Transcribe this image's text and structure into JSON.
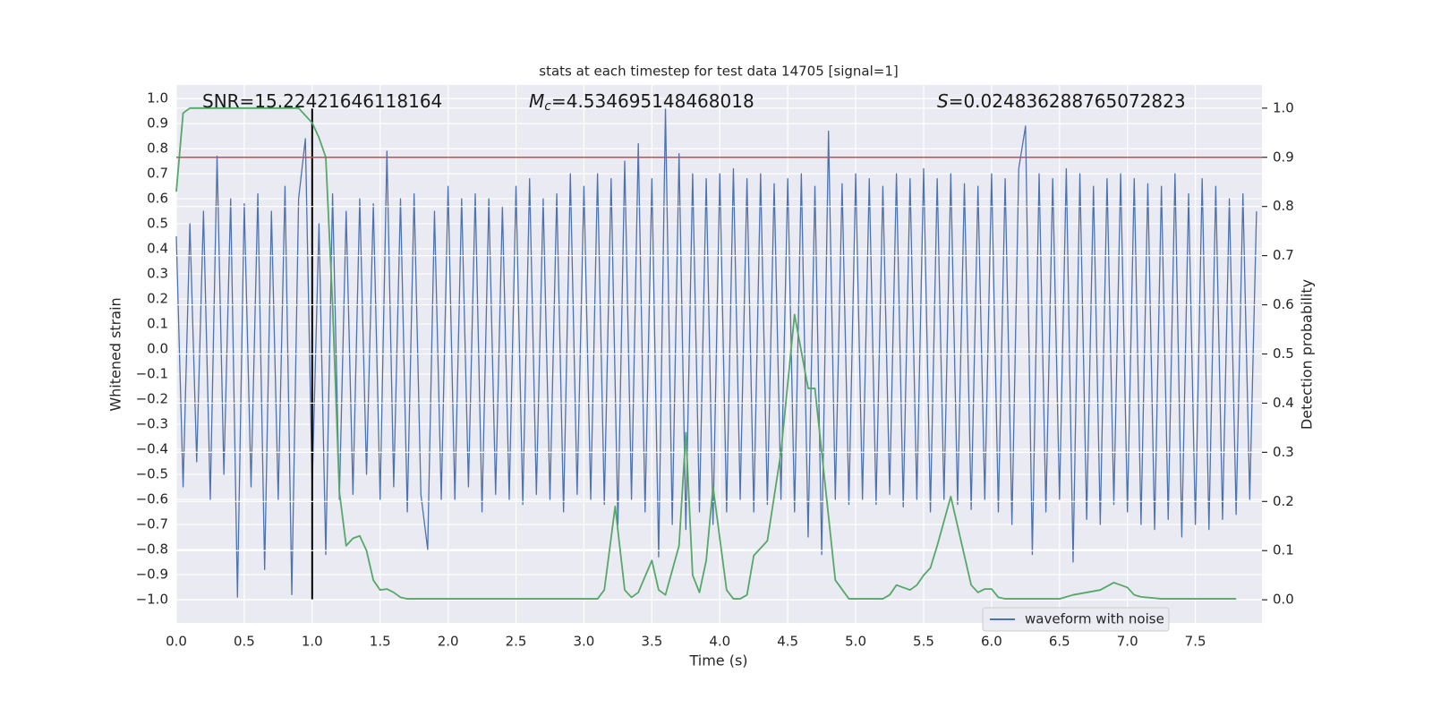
{
  "chart_data": {
    "type": "line",
    "title": "stats at each timestep for test data 14705 [signal=1]",
    "xlabel": "Time (s)",
    "ylabel": "Whitened strain",
    "y2label": "Detection probability",
    "xlim": [
      0,
      7.99
    ],
    "ylim": [
      -1.093,
      1.054
    ],
    "y2lim": [
      -0.047,
      1.047
    ],
    "xticks": [
      {
        "value": 0,
        "label": "0.0"
      },
      0.5,
      {
        "value": 1,
        "label": "1.0"
      },
      1.5,
      {
        "value": 2,
        "label": "2.0"
      },
      2.5,
      {
        "value": 3,
        "label": "3.0"
      },
      3.5,
      {
        "value": 4,
        "label": "4.0"
      },
      4.5,
      {
        "value": 5,
        "label": "5.0"
      },
      5.5,
      {
        "value": 6,
        "label": "6.0"
      },
      6.5,
      {
        "value": 7,
        "label": "7.0"
      },
      7.5
    ],
    "yticks": [
      {
        "value": -1,
        "label": "−1.0"
      },
      {
        "value": -0.9,
        "label": "−0.9"
      },
      {
        "value": -0.8,
        "label": "−0.8"
      },
      {
        "value": -0.7,
        "label": "−0.7"
      },
      {
        "value": -0.6,
        "label": "−0.6"
      },
      {
        "value": -0.5,
        "label": "−0.5"
      },
      {
        "value": -0.4,
        "label": "−0.4"
      },
      {
        "value": -0.3,
        "label": "−0.3"
      },
      {
        "value": -0.2,
        "label": "−0.2"
      },
      {
        "value": -0.1,
        "label": "−0.1"
      },
      {
        "value": 0,
        "label": "0.0"
      },
      0.1,
      0.2,
      0.3,
      0.4,
      0.5,
      0.6,
      0.7,
      0.8,
      0.9,
      {
        "value": 1,
        "label": "1.0"
      }
    ],
    "y2ticks": [
      {
        "value": 0,
        "label": "0.0"
      },
      0.1,
      0.2,
      0.3,
      0.4,
      0.5,
      0.6,
      0.7,
      0.8,
      0.9,
      {
        "value": 1,
        "label": "1.0"
      }
    ],
    "grid": true,
    "legend": "lower right",
    "series": [
      {
        "name": "waveform with noise",
        "color": "#4c72b0",
        "x": [
          0,
          0.05,
          0.1,
          0.15,
          0.2,
          0.25,
          0.3,
          0.35,
          0.4,
          0.45,
          0.5,
          0.55,
          0.6,
          0.65,
          0.7,
          0.75,
          0.8,
          0.85,
          0.9,
          0.95,
          1,
          1.05,
          1.1,
          1.15,
          1.2,
          1.25,
          1.3,
          1.35,
          1.4,
          1.45,
          1.5,
          1.55,
          1.6,
          1.65,
          1.7,
          1.75,
          1.8,
          1.85,
          1.9,
          1.95,
          2,
          2.05,
          2.1,
          2.15,
          2.2,
          2.25,
          2.3,
          2.35,
          2.4,
          2.45,
          2.5,
          2.55,
          2.6,
          2.65,
          2.7,
          2.75,
          2.8,
          2.85,
          2.9,
          2.95,
          3,
          3.05,
          3.1,
          3.15,
          3.2,
          3.25,
          3.3,
          3.35,
          3.4,
          3.45,
          3.5,
          3.55,
          3.6,
          3.65,
          3.7,
          3.75,
          3.8,
          3.85,
          3.9,
          3.95,
          4,
          4.05,
          4.1,
          4.15,
          4.2,
          4.25,
          4.3,
          4.35,
          4.4,
          4.45,
          4.5,
          4.55,
          4.6,
          4.65,
          4.7,
          4.75,
          4.8,
          4.85,
          4.9,
          4.95,
          5,
          5.05,
          5.1,
          5.15,
          5.2,
          5.25,
          5.3,
          5.35,
          5.4,
          5.45,
          5.5,
          5.55,
          5.6,
          5.65,
          5.7,
          5.75,
          5.8,
          5.85,
          5.9,
          5.95,
          6,
          6.05,
          6.1,
          6.15,
          6.2,
          6.25,
          6.3,
          6.35,
          6.4,
          6.45,
          6.5,
          6.55,
          6.6,
          6.65,
          6.7,
          6.75,
          6.8,
          6.85,
          6.9,
          6.95,
          7,
          7.05,
          7.1,
          7.15,
          7.2,
          7.25,
          7.3,
          7.35,
          7.4,
          7.45,
          7.5,
          7.55,
          7.6,
          7.65,
          7.7,
          7.75,
          7.8,
          7.85,
          7.9,
          7.95
        ],
        "values": [
          0.45,
          -0.55,
          0.5,
          -0.45,
          0.55,
          -0.6,
          0.77,
          -0.5,
          0.6,
          -0.99,
          0.58,
          -0.55,
          0.62,
          -0.88,
          0.55,
          -0.6,
          0.65,
          -0.98,
          0.6,
          0.84,
          -0.55,
          0.5,
          -0.82,
          0.62,
          -0.6,
          0.55,
          -0.58,
          0.6,
          -0.5,
          0.58,
          -0.6,
          0.79,
          -0.55,
          0.6,
          -0.65,
          0.62,
          -0.58,
          -0.8,
          0.55,
          -0.6,
          0.65,
          -0.6,
          0.6,
          -0.55,
          0.62,
          -0.65,
          0.6,
          -0.58,
          0.57,
          -0.6,
          0.65,
          -0.62,
          0.68,
          -0.58,
          0.6,
          -0.6,
          0.62,
          -0.65,
          0.7,
          -0.58,
          0.65,
          -0.6,
          0.7,
          -0.62,
          0.68,
          -0.7,
          0.75,
          -0.6,
          0.82,
          -0.65,
          0.68,
          -0.83,
          0.96,
          -0.7,
          0.78,
          -0.72,
          0.7,
          -0.65,
          0.68,
          -0.7,
          0.7,
          -0.65,
          0.72,
          -0.6,
          0.68,
          -0.65,
          0.7,
          -0.62,
          0.66,
          -0.6,
          0.68,
          -0.65,
          0.7,
          -0.75,
          0.65,
          -0.82,
          0.87,
          -0.6,
          0.66,
          -0.62,
          0.7,
          -0.6,
          0.68,
          -0.62,
          0.65,
          -0.58,
          0.7,
          -0.63,
          0.68,
          -0.6,
          0.72,
          -0.65,
          0.68,
          -0.6,
          0.7,
          -0.62,
          0.66,
          -0.64,
          0.65,
          -0.6,
          0.7,
          -0.65,
          0.68,
          -0.7,
          0.72,
          0.89,
          -0.82,
          0.7,
          -0.65,
          0.68,
          -0.6,
          0.72,
          -0.85,
          0.7,
          -0.68,
          0.65,
          -0.7,
          0.68,
          -0.62,
          0.7,
          -0.65,
          0.68,
          -0.7,
          0.66,
          -0.72,
          0.65,
          -0.68,
          0.7,
          -0.75,
          0.62,
          -0.7,
          0.68,
          -0.72,
          0.65,
          -0.68,
          0.6,
          -0.66,
          0.62,
          -0.6,
          0.55
        ]
      },
      {
        "color": "#55a868",
        "axis": "y2",
        "x": [
          0,
          0.05,
          0.1,
          0.9,
          0.95,
          1,
          1.05,
          1.1,
          1.15,
          1.2,
          1.25,
          1.3,
          1.35,
          1.4,
          1.45,
          1.5,
          1.55,
          1.6,
          1.65,
          1.7,
          3.1,
          3.15,
          3.23,
          3.3,
          3.35,
          3.4,
          3.5,
          3.55,
          3.6,
          3.7,
          3.75,
          3.8,
          3.85,
          3.9,
          3.95,
          4.05,
          4.1,
          4.15,
          4.2,
          4.25,
          4.35,
          4.45,
          4.55,
          4.65,
          4.7,
          4.75,
          4.85,
          4.95,
          5.2,
          5.25,
          5.3,
          5.35,
          5.4,
          5.45,
          5.5,
          5.55,
          5.6,
          5.7,
          5.75,
          5.85,
          5.9,
          5.95,
          6,
          6.05,
          6.1,
          6.5,
          6.6,
          6.8,
          6.9,
          7,
          7.05,
          7.1,
          7.25,
          7.8
        ],
        "values": [
          0.83,
          0.99,
          1.0,
          1.0,
          0.985,
          0.97,
          0.94,
          0.9,
          0.6,
          0.22,
          0.11,
          0.125,
          0.13,
          0.1,
          0.04,
          0.02,
          0.022,
          0.015,
          0.005,
          0.002,
          0.002,
          0.02,
          0.19,
          0.02,
          0.005,
          0.015,
          0.08,
          0.02,
          0.01,
          0.11,
          0.34,
          0.05,
          0.015,
          0.08,
          0.23,
          0.02,
          0.002,
          0.002,
          0.01,
          0.09,
          0.12,
          0.3,
          0.58,
          0.43,
          0.43,
          0.3,
          0.04,
          0.002,
          0.002,
          0.01,
          0.03,
          0.025,
          0.02,
          0.03,
          0.05,
          0.065,
          0.11,
          0.21,
          0.15,
          0.03,
          0.015,
          0.022,
          0.022,
          0.005,
          0.002,
          0.002,
          0.01,
          0.02,
          0.035,
          0.025,
          0.01,
          0.006,
          0.002,
          0.002
        ]
      }
    ],
    "hlines": [
      {
        "value": 0.9,
        "axis": "y2",
        "color": "#c44e52"
      }
    ],
    "vlines": [
      {
        "value": 1.0,
        "color": "#000000"
      }
    ],
    "annotations": [
      {
        "text": "SNR=15.22421646118164"
      },
      {
        "symbol": "M",
        "subscript": "c",
        "text": "=4.534695148468018"
      },
      {
        "symbol": "S",
        "text": "=0.024836288765072823"
      }
    ]
  }
}
